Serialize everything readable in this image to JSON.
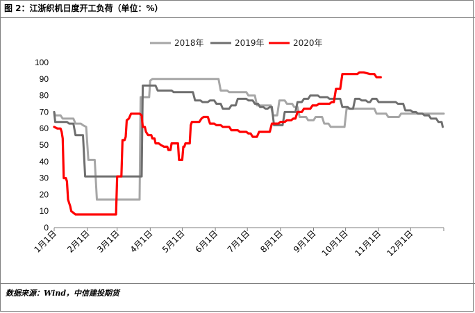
{
  "header": {
    "title": "图 2：江浙织机日度开工负荷（单位：%）"
  },
  "footer": {
    "source": "数据来源：Wind，中信建投期货"
  },
  "chart_data": {
    "type": "line",
    "title": "图 2：江浙织机日度开工负荷（单位：%）",
    "xlabel": "",
    "ylabel": "",
    "ylim": [
      0,
      100
    ],
    "yticks": [
      "0",
      "10",
      "20",
      "30",
      "40",
      "50",
      "60",
      "70",
      "80",
      "90",
      "100"
    ],
    "xticks": [
      "1月1日",
      "2月1日",
      "3月1日",
      "4月1日",
      "5月1日",
      "6月1日",
      "7月1日",
      "8月1日",
      "9月1日",
      "10月1日",
      "11月1日",
      "12月1日"
    ],
    "grid": false,
    "legend": "top",
    "series": [
      {
        "name": "2018年",
        "color": "#a6a6a6",
        "points": [
          [
            0,
            70
          ],
          [
            1,
            68
          ],
          [
            6,
            68
          ],
          [
            8,
            66
          ],
          [
            18,
            66
          ],
          [
            20,
            63
          ],
          [
            25,
            63
          ],
          [
            27,
            62
          ],
          [
            30,
            61
          ],
          [
            32,
            41
          ],
          [
            38,
            41
          ],
          [
            40,
            17
          ],
          [
            80,
            17
          ],
          [
            81,
            79
          ],
          [
            89,
            79
          ],
          [
            90,
            89
          ],
          [
            92,
            90
          ],
          [
            120,
            90
          ],
          [
            154,
            90
          ],
          [
            156,
            83
          ],
          [
            162,
            83
          ],
          [
            164,
            82
          ],
          [
            170,
            82
          ],
          [
            180,
            82
          ],
          [
            182,
            80
          ],
          [
            188,
            80
          ],
          [
            190,
            74
          ],
          [
            203,
            74
          ],
          [
            205,
            68
          ],
          [
            209,
            68
          ],
          [
            211,
            77
          ],
          [
            216,
            77
          ],
          [
            218,
            75
          ],
          [
            223,
            75
          ],
          [
            225,
            73
          ],
          [
            228,
            73
          ],
          [
            230,
            67
          ],
          [
            236,
            67
          ],
          [
            238,
            65
          ],
          [
            243,
            65
          ],
          [
            245,
            67
          ],
          [
            251,
            67
          ],
          [
            253,
            63
          ],
          [
            257,
            63
          ],
          [
            259,
            61
          ],
          [
            272,
            61
          ],
          [
            274,
            72
          ],
          [
            300,
            72
          ],
          [
            302,
            69
          ],
          [
            311,
            69
          ],
          [
            313,
            67
          ],
          [
            323,
            67
          ],
          [
            325,
            69
          ],
          [
            365,
            69
          ]
        ]
      },
      {
        "name": "2019年",
        "color": "#6e6e6e",
        "points": [
          [
            0,
            70
          ],
          [
            1,
            64
          ],
          [
            12,
            64
          ],
          [
            14,
            63
          ],
          [
            18,
            63
          ],
          [
            20,
            56
          ],
          [
            27,
            56
          ],
          [
            29,
            31
          ],
          [
            72,
            31
          ],
          [
            82,
            31
          ],
          [
            83,
            86
          ],
          [
            95,
            86
          ],
          [
            97,
            83
          ],
          [
            110,
            83
          ],
          [
            112,
            82
          ],
          [
            130,
            82
          ],
          [
            132,
            77
          ],
          [
            137,
            77
          ],
          [
            139,
            76
          ],
          [
            144,
            76
          ],
          [
            146,
            77
          ],
          [
            150,
            77
          ],
          [
            152,
            75
          ],
          [
            156,
            75
          ],
          [
            158,
            72
          ],
          [
            164,
            72
          ],
          [
            166,
            74
          ],
          [
            170,
            74
          ],
          [
            172,
            78
          ],
          [
            180,
            78
          ],
          [
            182,
            77
          ],
          [
            186,
            77
          ],
          [
            188,
            75
          ],
          [
            191,
            75
          ],
          [
            193,
            73
          ],
          [
            196,
            73
          ],
          [
            198,
            72
          ],
          [
            200,
            72
          ],
          [
            202,
            73
          ],
          [
            204,
            73
          ],
          [
            206,
            62
          ],
          [
            214,
            62
          ],
          [
            216,
            70
          ],
          [
            226,
            70
          ],
          [
            228,
            76
          ],
          [
            232,
            76
          ],
          [
            234,
            78
          ],
          [
            238,
            78
          ],
          [
            240,
            80
          ],
          [
            247,
            80
          ],
          [
            249,
            79
          ],
          [
            256,
            79
          ],
          [
            258,
            78
          ],
          [
            268,
            78
          ],
          [
            270,
            73
          ],
          [
            275,
            73
          ],
          [
            277,
            72
          ],
          [
            280,
            72
          ],
          [
            282,
            78
          ],
          [
            286,
            78
          ],
          [
            288,
            77
          ],
          [
            292,
            77
          ],
          [
            294,
            76
          ],
          [
            296,
            76
          ],
          [
            298,
            78
          ],
          [
            302,
            78
          ],
          [
            304,
            76
          ],
          [
            320,
            76
          ],
          [
            322,
            75
          ],
          [
            327,
            75
          ],
          [
            329,
            71
          ],
          [
            334,
            71
          ],
          [
            336,
            70
          ],
          [
            339,
            70
          ],
          [
            341,
            69
          ],
          [
            345,
            69
          ],
          [
            347,
            68
          ],
          [
            351,
            68
          ],
          [
            353,
            66
          ],
          [
            358,
            66
          ],
          [
            360,
            64
          ],
          [
            363,
            64
          ],
          [
            364,
            61
          ]
        ]
      },
      {
        "name": "2020年",
        "color": "#ff0000",
        "points": [
          [
            0,
            61
          ],
          [
            3,
            60
          ],
          [
            6,
            60
          ],
          [
            7,
            58
          ],
          [
            8,
            54
          ],
          [
            9,
            30
          ],
          [
            11,
            30
          ],
          [
            12,
            28
          ],
          [
            13,
            17
          ],
          [
            14,
            15
          ],
          [
            15,
            13
          ],
          [
            16,
            10
          ],
          [
            18,
            9
          ],
          [
            20,
            8
          ],
          [
            45,
            8
          ],
          [
            50,
            8
          ],
          [
            58,
            8
          ],
          [
            59,
            31
          ],
          [
            63,
            31
          ],
          [
            64,
            53
          ],
          [
            66,
            53
          ],
          [
            67,
            55
          ],
          [
            68,
            65
          ],
          [
            70,
            66
          ],
          [
            72,
            69
          ],
          [
            80,
            69
          ],
          [
            82,
            68
          ],
          [
            83,
            61
          ],
          [
            85,
            61
          ],
          [
            86,
            58
          ],
          [
            88,
            56
          ],
          [
            91,
            56
          ],
          [
            92,
            54
          ],
          [
            94,
            54
          ],
          [
            95,
            51
          ],
          [
            98,
            51
          ],
          [
            100,
            50
          ],
          [
            103,
            49
          ],
          [
            106,
            49
          ],
          [
            107,
            47
          ],
          [
            109,
            47
          ],
          [
            110,
            51
          ],
          [
            116,
            51
          ],
          [
            117,
            41
          ],
          [
            120,
            41
          ],
          [
            121,
            49
          ],
          [
            122,
            49
          ],
          [
            123,
            51
          ],
          [
            127,
            51
          ],
          [
            128,
            62
          ],
          [
            129,
            64
          ],
          [
            136,
            64
          ],
          [
            138,
            66
          ],
          [
            140,
            67
          ],
          [
            144,
            67
          ],
          [
            146,
            63
          ],
          [
            150,
            63
          ],
          [
            152,
            62
          ],
          [
            156,
            62
          ],
          [
            158,
            61
          ],
          [
            164,
            61
          ],
          [
            166,
            59
          ],
          [
            172,
            59
          ],
          [
            174,
            58
          ],
          [
            180,
            58
          ],
          [
            182,
            57
          ],
          [
            184,
            57
          ],
          [
            186,
            55
          ],
          [
            190,
            55
          ],
          [
            192,
            58
          ],
          [
            202,
            58
          ],
          [
            204,
            63
          ],
          [
            210,
            63
          ],
          [
            212,
            64
          ],
          [
            216,
            64
          ],
          [
            218,
            65
          ],
          [
            222,
            65
          ],
          [
            224,
            66
          ],
          [
            226,
            66
          ],
          [
            228,
            70
          ],
          [
            232,
            70
          ],
          [
            234,
            72
          ],
          [
            240,
            72
          ],
          [
            242,
            74
          ],
          [
            246,
            74
          ],
          [
            248,
            75
          ],
          [
            258,
            75
          ],
          [
            260,
            76
          ],
          [
            262,
            76
          ],
          [
            264,
            84
          ],
          [
            268,
            84
          ],
          [
            270,
            93
          ],
          [
            274,
            93
          ],
          [
            276,
            93
          ],
          [
            284,
            93
          ],
          [
            286,
            94
          ],
          [
            290,
            94
          ],
          [
            296,
            93
          ],
          [
            300,
            93
          ],
          [
            302,
            91
          ],
          [
            306,
            91
          ]
        ]
      }
    ]
  }
}
